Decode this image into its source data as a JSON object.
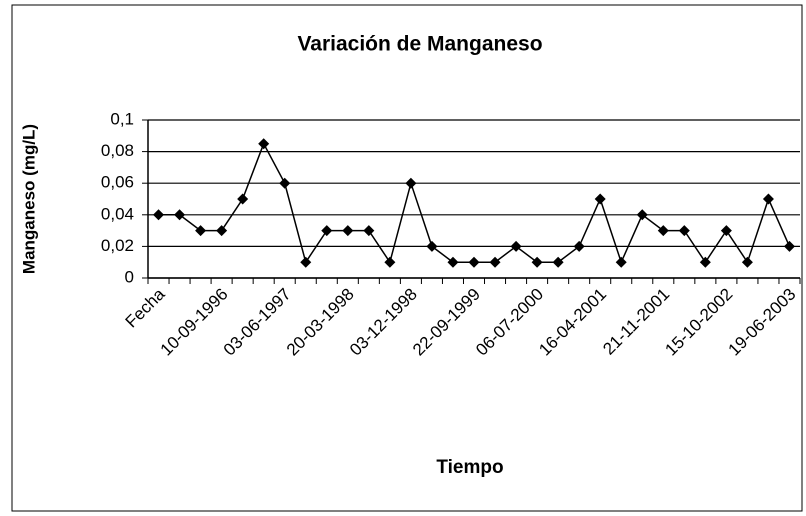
{
  "chart_data": {
    "type": "line",
    "title": "Variación de Manganeso",
    "x_label": "Tiempo",
    "y_label": "Manganeso (mg/L)",
    "categories": [
      "Fecha",
      null,
      null,
      "10-09-1996",
      null,
      null,
      "03-06-1997",
      null,
      null,
      "20-03-1998",
      null,
      null,
      "03-12-1998",
      null,
      null,
      "22-09-1999",
      null,
      null,
      "06-07-2000",
      null,
      null,
      "16-04-2001",
      null,
      null,
      "21-11-2001",
      null,
      null,
      "15-10-2002",
      null,
      null,
      "19-06-2003"
    ],
    "series": [
      {
        "name": "Manganeso",
        "color": "#000000",
        "values": [
          0.04,
          0.04,
          0.03,
          0.03,
          0.05,
          0.085,
          0.06,
          0.01,
          0.03,
          0.03,
          0.03,
          0.01,
          0.06,
          0.02,
          0.01,
          0.01,
          0.01,
          0.02,
          0.01,
          0.01,
          0.02,
          0.05,
          0.01,
          0.04,
          0.03,
          0.03,
          0.01,
          0.03,
          0.01,
          0.05,
          0.02
        ]
      }
    ],
    "ylim": [
      0,
      0.1
    ],
    "yticks": [
      0,
      {
        "value": 0.02,
        "label": "0,02"
      },
      {
        "value": 0.04,
        "label": "0,04"
      },
      {
        "value": 0.06,
        "label": "0,06"
      },
      {
        "value": 0.08,
        "label": "0,08"
      },
      {
        "value": 0.1,
        "label": "0,1"
      }
    ],
    "grid": true
  }
}
